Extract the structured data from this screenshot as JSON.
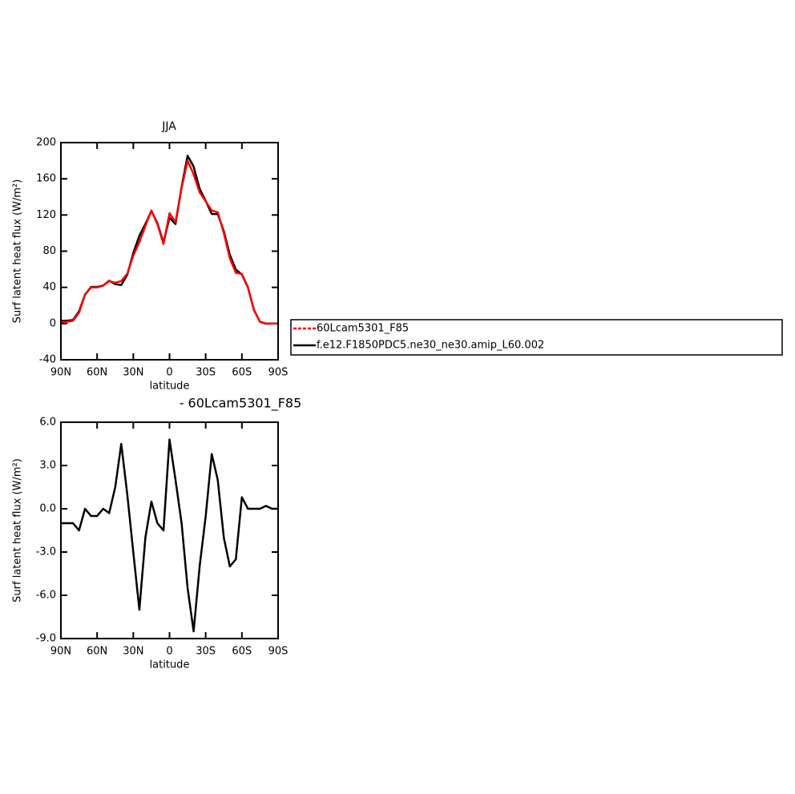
{
  "chart_data": [
    {
      "type": "line",
      "title": "JJA",
      "xlabel": "latitude",
      "ylabel": "Surf latent heat flux (W/m²)",
      "x": [
        90,
        85,
        80,
        75,
        70,
        65,
        60,
        55,
        50,
        45,
        40,
        35,
        30,
        25,
        20,
        15,
        10,
        5,
        0,
        -5,
        -10,
        -15,
        -20,
        -25,
        -30,
        -35,
        -40,
        -45,
        -50,
        -55,
        -60,
        -65,
        -70,
        -75,
        -80,
        -85,
        -90
      ],
      "series": [
        {
          "name": "f.e12.F1850PDC5.ne30_ne30.amip_L60.002",
          "color": "#000000",
          "values": [
            3,
            3,
            4,
            13.5,
            32,
            40.5,
            40.5,
            42,
            47.3,
            43.5,
            42.5,
            54,
            78,
            97,
            110,
            124.5,
            111,
            89.5,
            117.2,
            110,
            151,
            185.5,
            173.5,
            149,
            135.5,
            121.2,
            121,
            102,
            76,
            59.5,
            54.2,
            40,
            15,
            2,
            -0.2,
            0,
            0
          ]
        },
        {
          "name": "60Lcam5301_F85",
          "color": "#ff0000",
          "values": [
            2,
            2,
            3,
            12,
            32,
            40,
            40,
            42,
            47,
            45,
            47,
            55,
            75,
            90,
            108,
            125,
            110,
            88,
            122,
            112,
            150,
            180,
            165,
            145,
            135,
            125,
            123,
            100,
            72,
            56,
            55,
            40,
            15,
            2,
            0,
            0,
            0
          ]
        }
      ],
      "xlim": [
        90,
        -90
      ],
      "xticks": [
        {
          "value": 90,
          "label": "90N"
        },
        {
          "value": 60,
          "label": "60N"
        },
        {
          "value": 30,
          "label": "30N"
        },
        0,
        {
          "value": -30,
          "label": "30S"
        },
        {
          "value": -60,
          "label": "60S"
        },
        {
          "value": -90,
          "label": "90S"
        }
      ],
      "ylim": [
        -40,
        200
      ],
      "yticks": [
        -40,
        0,
        40,
        80,
        120,
        160,
        200
      ],
      "legend": "right"
    },
    {
      "type": "line",
      "title": "- 60Lcam5301_F85",
      "xlabel": "latitude",
      "ylabel": "Surf latent heat flux (W/m²)",
      "x": [
        90,
        85,
        80,
        75,
        70,
        65,
        60,
        55,
        50,
        45,
        40,
        35,
        30,
        25,
        20,
        15,
        10,
        5,
        0,
        -5,
        -10,
        -15,
        -20,
        -25,
        -30,
        -35,
        -40,
        -45,
        -50,
        -55,
        -60,
        -65,
        -70,
        -75,
        -80,
        -85,
        -90
      ],
      "series": [
        {
          "color": "#000000",
          "values": [
            -1,
            -1,
            -1,
            -1.5,
            0,
            -0.5,
            -0.5,
            0,
            -0.3,
            1.5,
            4.5,
            1,
            -3,
            -7,
            -2,
            0.5,
            -1,
            -1.5,
            4.8,
            2,
            -1,
            -5.5,
            -8.5,
            -4,
            -0.5,
            3.8,
            2,
            -2,
            -4,
            -3.5,
            0.8,
            0,
            0,
            0,
            0.2,
            0,
            0
          ]
        }
      ],
      "xlim": [
        90,
        -90
      ],
      "xticks": [
        {
          "value": 90,
          "label": "90N"
        },
        {
          "value": 60,
          "label": "60N"
        },
        {
          "value": 30,
          "label": "30N"
        },
        0,
        {
          "value": -30,
          "label": "30S"
        },
        {
          "value": -60,
          "label": "60S"
        },
        {
          "value": -90,
          "label": "90S"
        }
      ],
      "ylim": [
        -9,
        6
      ],
      "yticks": [
        {
          "value": -9,
          "label": "-9.0"
        },
        {
          "value": -6,
          "label": "-6.0"
        },
        {
          "value": -3,
          "label": "-3.0"
        },
        {
          "value": 0,
          "label": "0.0"
        },
        {
          "value": 3,
          "label": "3.0"
        },
        {
          "value": 6,
          "label": "6.0"
        }
      ]
    }
  ]
}
